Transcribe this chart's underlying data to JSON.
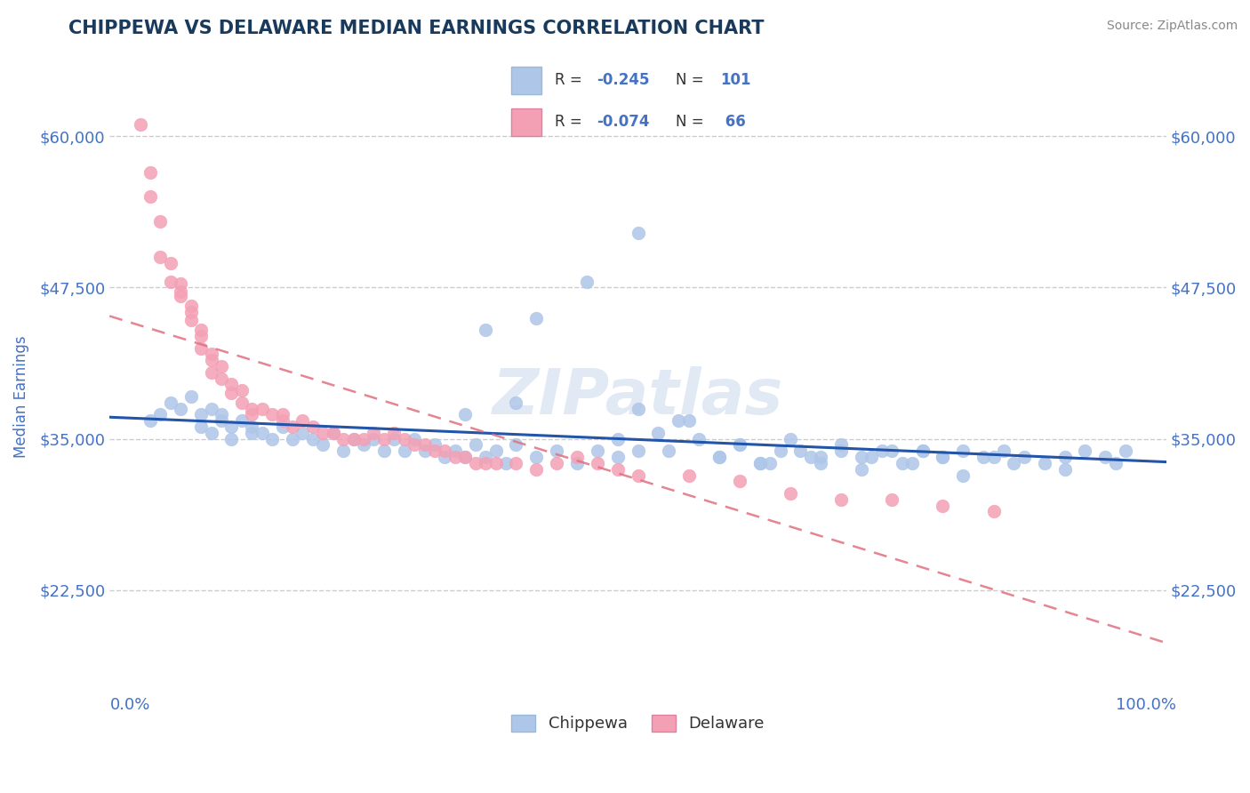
{
  "title": "CHIPPEWA VS DELAWARE MEDIAN EARNINGS CORRELATION CHART",
  "source_text": "Source: ZipAtlas.com",
  "ylabel": "Median Earnings",
  "watermark": "ZIPatlas",
  "x_tick_labels": [
    "0.0%",
    "100.0%"
  ],
  "y_tick_labels": [
    "$22,500",
    "$35,000",
    "$47,500",
    "$60,000"
  ],
  "y_tick_values": [
    22500,
    35000,
    47500,
    60000
  ],
  "y_min": 14000,
  "y_max": 63000,
  "x_min": -0.02,
  "x_max": 1.02,
  "title_color": "#1a3a5c",
  "title_fontsize": 15,
  "axis_label_color": "#4472c4",
  "tick_label_color": "#4472c4",
  "source_color": "#888888",
  "grid_color": "#cccccc",
  "chippewa_color": "#aec6e8",
  "delaware_color": "#f4a0b4",
  "chippewa_line_color": "#2255aa",
  "delaware_line_color": "#e07080",
  "legend_label1": "Chippewa",
  "legend_label2": "Delaware",
  "chippewa_x": [
    0.02,
    0.03,
    0.04,
    0.05,
    0.06,
    0.07,
    0.07,
    0.08,
    0.08,
    0.09,
    0.09,
    0.1,
    0.1,
    0.11,
    0.12,
    0.12,
    0.13,
    0.14,
    0.15,
    0.16,
    0.17,
    0.18,
    0.19,
    0.2,
    0.21,
    0.22,
    0.23,
    0.24,
    0.25,
    0.26,
    0.27,
    0.28,
    0.29,
    0.3,
    0.31,
    0.32,
    0.33,
    0.34,
    0.35,
    0.36,
    0.37,
    0.38,
    0.4,
    0.42,
    0.44,
    0.46,
    0.48,
    0.5,
    0.52,
    0.54,
    0.56,
    0.58,
    0.6,
    0.62,
    0.64,
    0.66,
    0.68,
    0.7,
    0.72,
    0.74,
    0.76,
    0.78,
    0.8,
    0.82,
    0.84,
    0.86,
    0.88,
    0.9,
    0.92,
    0.94,
    0.96,
    0.98,
    0.35,
    0.4,
    0.45,
    0.5,
    0.33,
    0.38,
    0.6,
    0.65,
    0.7,
    0.75,
    0.8,
    0.85,
    0.5,
    0.55,
    0.62,
    0.67,
    0.72,
    0.77,
    0.82,
    0.87,
    0.92,
    0.97,
    0.48,
    0.53,
    0.58,
    0.63,
    0.68,
    0.73,
    0.78
  ],
  "chippewa_y": [
    36500,
    37000,
    38000,
    37500,
    38500,
    37000,
    36000,
    37500,
    35500,
    37000,
    36500,
    36000,
    35000,
    36500,
    35500,
    36000,
    35500,
    35000,
    36000,
    35000,
    35500,
    35000,
    34500,
    35500,
    34000,
    35000,
    34500,
    35000,
    34000,
    35000,
    34000,
    35000,
    34000,
    34500,
    33500,
    34000,
    33500,
    34500,
    33500,
    34000,
    33000,
    34500,
    33500,
    34000,
    33000,
    34000,
    33500,
    34000,
    35500,
    36500,
    35000,
    33500,
    34500,
    33000,
    34000,
    34000,
    33500,
    34500,
    33500,
    34000,
    33000,
    34000,
    33500,
    34000,
    33500,
    34000,
    33500,
    33000,
    33500,
    34000,
    33500,
    34000,
    44000,
    45000,
    48000,
    52000,
    37000,
    38000,
    34500,
    35000,
    34000,
    34000,
    33500,
    33500,
    37500,
    36500,
    33000,
    33500,
    32500,
    33000,
    32000,
    33000,
    32500,
    33000,
    35000,
    34000,
    33500,
    33000,
    33000,
    33500,
    34000
  ],
  "delaware_x": [
    0.01,
    0.02,
    0.02,
    0.03,
    0.03,
    0.04,
    0.04,
    0.05,
    0.05,
    0.05,
    0.06,
    0.06,
    0.06,
    0.07,
    0.07,
    0.07,
    0.08,
    0.08,
    0.08,
    0.09,
    0.09,
    0.1,
    0.1,
    0.11,
    0.11,
    0.12,
    0.12,
    0.13,
    0.14,
    0.15,
    0.15,
    0.16,
    0.17,
    0.18,
    0.19,
    0.2,
    0.21,
    0.22,
    0.23,
    0.24,
    0.25,
    0.26,
    0.27,
    0.28,
    0.29,
    0.3,
    0.31,
    0.32,
    0.33,
    0.34,
    0.35,
    0.36,
    0.38,
    0.4,
    0.42,
    0.44,
    0.46,
    0.48,
    0.5,
    0.55,
    0.6,
    0.65,
    0.7,
    0.75,
    0.8,
    0.85
  ],
  "delaware_y": [
    61000,
    57000,
    55000,
    53000,
    50000,
    49500,
    48000,
    47800,
    47200,
    46800,
    46000,
    45500,
    44800,
    44000,
    43500,
    42500,
    42000,
    41500,
    40500,
    41000,
    40000,
    39500,
    38800,
    39000,
    38000,
    37500,
    37000,
    37500,
    37000,
    36500,
    37000,
    36000,
    36500,
    36000,
    35500,
    35500,
    35000,
    35000,
    35000,
    35500,
    35000,
    35500,
    35000,
    34500,
    34500,
    34000,
    34000,
    33500,
    33500,
    33000,
    33000,
    33000,
    33000,
    32500,
    33000,
    33500,
    33000,
    32500,
    32000,
    32000,
    31500,
    30500,
    30000,
    30000,
    29500,
    29000
  ]
}
